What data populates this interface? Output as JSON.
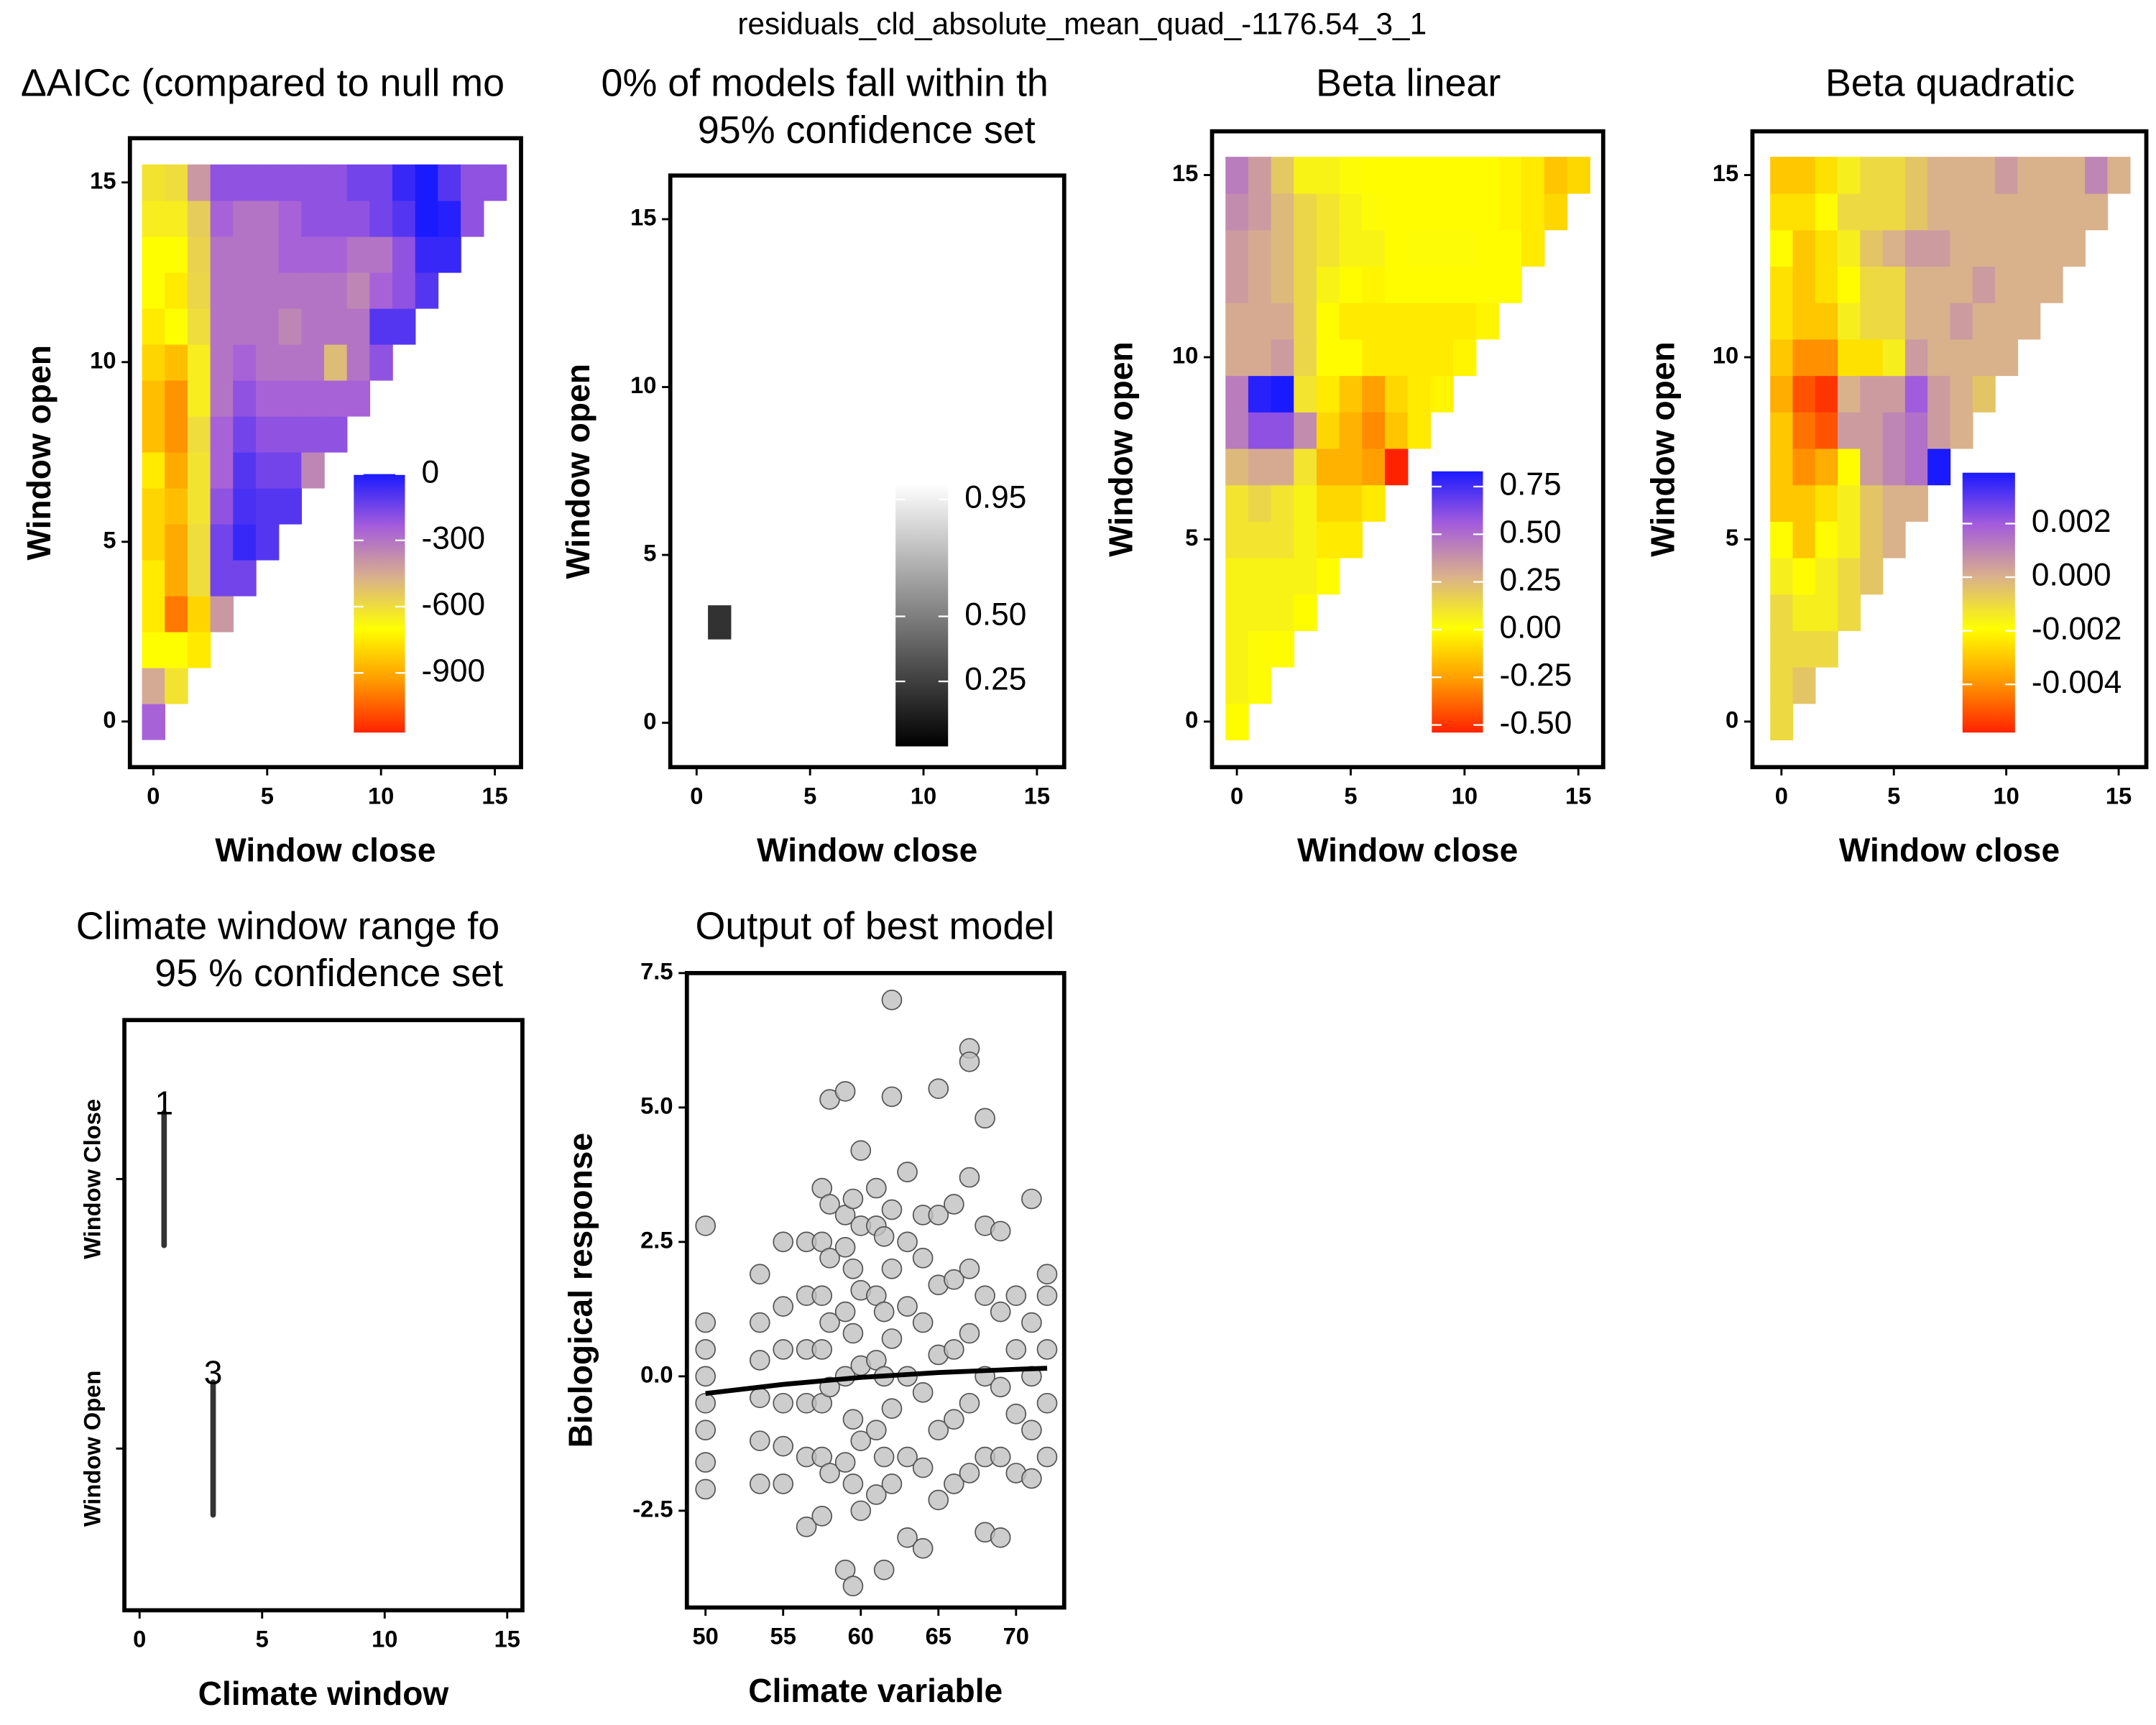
{
  "title": "residuals_cld_absolute_mean_quad_-1176.54_3_1",
  "chart_data": [
    {
      "type": "heatmap",
      "title": "ΔAICc (compared to null mo",
      "xlabel": "Window close",
      "ylabel": "Window open",
      "xlim": [
        -1.03,
        16.15
      ],
      "ylim": [
        -1.27,
        16.23
      ],
      "xticks": [
        0,
        5,
        10,
        15
      ],
      "yticks": [
        0,
        5,
        10,
        15
      ],
      "colorscale": [
        "#ff2200",
        "#ff9a00",
        "#ffff00",
        "#d9b08c",
        "#a45cdc",
        "#1a1aff"
      ],
      "zlim": [
        -1170,
        0
      ],
      "zticks": [
        0,
        -300,
        -600,
        -900
      ],
      "z": [
        [
          -250
        ],
        [
          -450,
          -620
        ],
        [
          -700,
          -700,
          -750
        ],
        [
          -750,
          -1000,
          -800,
          -400
        ],
        [
          -750,
          -900,
          -600,
          -150,
          -150
        ],
        [
          -800,
          -900,
          -600,
          -150,
          -50,
          -100
        ],
        [
          -800,
          -850,
          -620,
          -200,
          -80,
          -100,
          -100
        ],
        [
          -750,
          -900,
          -620,
          -250,
          -100,
          -150,
          -150,
          -350
        ],
        [
          -850,
          -950,
          -600,
          -250,
          -150,
          -200,
          -200,
          -200,
          -200
        ],
        [
          -850,
          -950,
          -650,
          -300,
          -200,
          -250,
          -250,
          -250,
          -250,
          -250
        ],
        [
          -800,
          -850,
          -650,
          -300,
          -250,
          -300,
          -300,
          -300,
          -500,
          -300,
          -200
        ],
        [
          -750,
          -700,
          -600,
          -300,
          -300,
          -300,
          -350,
          -300,
          -300,
          -300,
          -100,
          -100
        ],
        [
          -700,
          -750,
          -580,
          -300,
          -300,
          -300,
          -300,
          -300,
          -300,
          -350,
          -250,
          -200,
          -100
        ],
        [
          -700,
          -700,
          -570,
          -300,
          -300,
          -300,
          -250,
          -250,
          -250,
          -300,
          -300,
          -200,
          -50,
          -50
        ],
        [
          -650,
          -650,
          -550,
          -250,
          -300,
          -300,
          -250,
          -200,
          -200,
          -200,
          -150,
          -100,
          0,
          -20,
          -200
        ],
        [
          -620,
          -600,
          -400,
          -200,
          -200,
          -200,
          -200,
          -200,
          -200,
          -150,
          -150,
          -50,
          0,
          -100,
          -200,
          -200
        ]
      ]
    },
    {
      "type": "heatmap",
      "title": [
        "0% of models fall within th",
        "95% confidence set"
      ],
      "xlabel": "Window close",
      "ylabel": "Window open",
      "xlim": [
        -1.16,
        16.2
      ],
      "ylim": [
        -1.32,
        16.3
      ],
      "xticks": [
        0,
        5,
        10,
        15
      ],
      "yticks": [
        0,
        5,
        10,
        15
      ],
      "colorscale": [
        "#000000",
        "#ffffff"
      ],
      "zlim": [
        0,
        1.01
      ],
      "zticks": [
        0.95,
        {
          "value": 0.5,
          "label": "0.50"
        },
        0.25
      ],
      "z": [
        [
          null
        ],
        [
          null,
          null
        ],
        [
          null,
          null,
          null
        ],
        [
          null,
          0.2,
          null,
          null
        ]
      ]
    },
    {
      "type": "heatmap",
      "title": "Beta linear",
      "xlabel": "Window close",
      "ylabel": "Window open",
      "xlim": [
        -1.09,
        16.09
      ],
      "ylim": [
        -1.25,
        16.2
      ],
      "xticks": [
        0,
        5,
        10,
        15
      ],
      "yticks": [
        0,
        5,
        10,
        15
      ],
      "colorscale": [
        "#ff2200",
        "#ff9a00",
        "#ffff00",
        "#d9b08c",
        "#a45cdc",
        "#1a1aff"
      ],
      "zlim": [
        -0.54,
        0.83
      ],
      "zticks": [
        0.75,
        {
          "value": 0.5,
          "label": "0.50"
        },
        0.25,
        {
          "value": 0,
          "label": "0.00"
        },
        -0.25,
        {
          "value": -0.5,
          "label": "-0.50"
        }
      ],
      "z": [
        [
          0
        ],
        [
          0.05,
          0.02
        ],
        [
          0.05,
          0.02,
          0
        ],
        [
          0.05,
          0.05,
          0.05,
          0
        ],
        [
          0.05,
          0.05,
          0.05,
          0.05,
          0
        ],
        [
          0.1,
          0.1,
          0.1,
          0.05,
          -0.05,
          -0.05
        ],
        [
          0.1,
          0.15,
          0.1,
          0.05,
          -0.1,
          -0.1,
          -0.05
        ],
        [
          0.25,
          0.3,
          0.3,
          0.1,
          -0.2,
          -0.2,
          -0.25,
          -0.54
        ],
        [
          0.45,
          0.6,
          0.6,
          0.4,
          -0.1,
          -0.2,
          -0.3,
          -0.15,
          -0.05
        ],
        [
          0.45,
          0.8,
          0.83,
          0.1,
          -0.05,
          -0.15,
          -0.25,
          -0.1,
          -0.05,
          -0.02
        ],
        [
          0.3,
          0.3,
          0.35,
          0.15,
          0,
          0,
          -0.05,
          -0.05,
          -0.05,
          -0.05,
          -0.02
        ],
        [
          0.3,
          0.3,
          0.3,
          0.15,
          0,
          -0.05,
          -0.05,
          -0.05,
          -0.05,
          -0.05,
          -0.05,
          -0.02
        ],
        [
          0.35,
          0.3,
          0.25,
          0.15,
          0.05,
          0,
          -0.02,
          0,
          0,
          0,
          0,
          0,
          0
        ],
        [
          0.35,
          0.3,
          0.25,
          0.15,
          0.1,
          0.05,
          0.05,
          0,
          0.02,
          0.02,
          0.02,
          0,
          0,
          -0.05
        ],
        [
          0.4,
          0.35,
          0.25,
          0.15,
          0.1,
          0.05,
          0.02,
          0,
          0,
          0,
          0,
          0,
          -0.02,
          -0.05,
          -0.1
        ],
        [
          0.45,
          0.35,
          0.2,
          0.05,
          0.05,
          0.02,
          0,
          0,
          0,
          0,
          0,
          0,
          -0.02,
          -0.05,
          -0.15,
          -0.1
        ]
      ]
    },
    {
      "type": "heatmap",
      "title": "Beta quadratic",
      "xlabel": "Window close",
      "ylabel": "Window open",
      "xlim": [
        -1.29,
        16.23
      ],
      "ylim": [
        -1.25,
        16.2
      ],
      "xticks": [
        0,
        5,
        10,
        15
      ],
      "yticks": [
        0,
        5,
        10,
        15
      ],
      "colorscale": [
        "#ff2200",
        "#ff9a00",
        "#ffff00",
        "#d9b08c",
        "#a45cdc",
        "#1a1aff"
      ],
      "zlim": [
        -0.0058,
        0.0039
      ],
      "zticks": [
        0.002,
        {
          "value": 0,
          "label": "0.000"
        },
        -0.002,
        -0.004
      ],
      "z": [
        [
          -0.001
        ],
        [
          -0.001,
          -0.0005
        ],
        [
          -0.001,
          -0.001,
          -0.001
        ],
        [
          -0.001,
          -0.0015,
          -0.0015,
          -0.001
        ],
        [
          -0.0015,
          -0.002,
          -0.0015,
          -0.001,
          -0.0005
        ],
        [
          -0.002,
          -0.003,
          -0.002,
          -0.0015,
          -0.0005,
          0
        ],
        [
          -0.003,
          -0.003,
          -0.0025,
          -0.0015,
          -0.0005,
          0,
          0
        ],
        [
          -0.003,
          -0.004,
          -0.0035,
          -0.002,
          0.0005,
          0.001,
          0.0015,
          0.0039
        ],
        [
          -0.003,
          -0.0045,
          -0.005,
          0.0005,
          0.0005,
          0.001,
          0.0015,
          0.0005,
          0
        ],
        [
          -0.0035,
          -0.005,
          -0.0055,
          0,
          0.0005,
          0.0005,
          0.002,
          0.0005,
          0,
          -0.0005
        ],
        [
          -0.003,
          -0.004,
          -0.004,
          -0.0025,
          -0.0025,
          -0.0015,
          0.0005,
          0,
          0,
          0,
          0
        ],
        [
          -0.0025,
          -0.003,
          -0.003,
          -0.0015,
          -0.001,
          -0.001,
          0,
          0,
          0.0005,
          0,
          0,
          0
        ],
        [
          -0.0025,
          -0.003,
          -0.0025,
          -0.002,
          -0.001,
          -0.001,
          0,
          0,
          0,
          0.0005,
          0,
          0,
          0
        ],
        [
          -0.002,
          -0.003,
          -0.0025,
          -0.0015,
          -0.0005,
          0,
          0.0005,
          0.0005,
          0,
          0,
          0,
          0,
          0,
          0
        ],
        [
          -0.0025,
          -0.0025,
          -0.002,
          -0.001,
          -0.001,
          -0.001,
          -0.0005,
          0,
          0,
          0,
          0,
          0,
          0,
          0,
          0
        ],
        [
          -0.003,
          -0.003,
          -0.0025,
          -0.0015,
          -0.001,
          -0.001,
          -0.0005,
          0,
          0,
          0,
          0.0005,
          0,
          0,
          0,
          0.001,
          0
        ]
      ]
    },
    {
      "type": "range",
      "title": [
        "Climate window range fo",
        "95 % confidence set"
      ],
      "xlabel": "Climate window",
      "xlim": [
        -0.62,
        15.62
      ],
      "xticks": [
        0,
        5,
        10,
        15
      ],
      "categories": [
        "Window Close",
        "Window Open"
      ],
      "values": [
        1,
        3
      ],
      "color": "#333333"
    },
    {
      "type": "scatter",
      "title": "Output of best model",
      "xlabel": "Climate variable",
      "ylabel": "Biological response",
      "xlim": [
        48.8,
        73.1
      ],
      "ylim": [
        -4.3,
        7.5
      ],
      "xticks": [
        50,
        55,
        60,
        65,
        70
      ],
      "yticks": [
        7.5,
        {
          "value": 5,
          "label": "5.0"
        },
        2.5,
        {
          "value": 0,
          "label": "0.0"
        },
        -2.5
      ],
      "point_color": "#c0c0c0",
      "line_color": "#000000",
      "points": {
        "x": [
          50,
          50,
          50,
          50,
          50,
          50,
          50,
          50,
          53.5,
          53.5,
          53.5,
          53.5,
          53.5,
          53.5,
          55,
          55,
          55,
          55,
          55,
          55,
          56.5,
          56.5,
          56.5,
          56.5,
          56.5,
          56.5,
          57.5,
          57.5,
          57.5,
          57.5,
          57.5,
          57.5,
          57.5,
          58,
          58,
          58,
          58,
          58,
          58,
          59,
          59,
          59,
          59,
          59,
          59,
          59,
          59.5,
          59.5,
          59.5,
          59.5,
          59.5,
          59.5,
          60,
          60,
          60,
          60,
          60,
          60,
          61,
          61,
          61,
          61,
          61,
          61,
          61.5,
          61.5,
          61.5,
          61.5,
          61.5,
          62,
          62,
          62,
          62,
          62,
          62,
          62,
          63,
          63,
          63,
          63,
          63,
          63,
          64,
          64,
          64,
          64,
          64,
          64,
          65,
          65,
          65,
          65,
          65,
          65,
          66,
          66,
          66,
          66,
          66,
          67,
          67,
          67,
          67,
          67,
          67,
          67,
          68,
          68,
          68,
          68,
          68,
          68,
          69,
          69,
          69,
          69,
          69,
          70,
          70,
          70,
          70,
          71,
          71,
          71,
          71,
          71,
          72,
          72,
          72,
          72,
          72
        ],
        "values": [
          -2.1,
          -1.6,
          -1,
          -0.5,
          0,
          0.5,
          1,
          2.8,
          -2,
          -1.2,
          -0.4,
          0.3,
          1,
          1.9,
          -2,
          -1.3,
          -0.5,
          0.5,
          1.3,
          2.5,
          -2.8,
          -1.5,
          -0.5,
          0.5,
          1.5,
          2.5,
          -2.6,
          -1.5,
          -0.5,
          0.5,
          1.5,
          2.5,
          3.5,
          5.15,
          -1.8,
          -0.2,
          1,
          2.2,
          3.2,
          5.3,
          -3.6,
          -1.6,
          0,
          1.2,
          2.4,
          3,
          -3.9,
          -2,
          -0.8,
          0.8,
          2,
          3.3,
          4.2,
          -2.5,
          -1.2,
          0.2,
          1.6,
          2.8,
          -2.2,
          -1,
          0.3,
          1.5,
          2.8,
          3.5,
          -3.6,
          -1.5,
          0,
          1.2,
          2.6,
          7,
          5.2,
          -2,
          -0.6,
          0.7,
          2,
          3.1,
          -3,
          -1.5,
          0,
          1.3,
          2.5,
          3.8,
          -3.2,
          -1.7,
          -0.3,
          1,
          2.2,
          3,
          5.35,
          -2.3,
          -1,
          0.4,
          1.7,
          3,
          -2,
          -0.8,
          0.5,
          1.8,
          3.2,
          6.1,
          5.85,
          -1.8,
          -0.5,
          0.8,
          2,
          3.7,
          4.8,
          -2.9,
          -1.5,
          0,
          1.5,
          2.8,
          -3,
          -1.5,
          -0.2,
          1.2,
          2.7,
          -1.8,
          -0.7,
          0.5,
          1.5,
          -1.9,
          -1,
          0,
          1,
          3.3,
          -1.5,
          -0.5,
          0.5,
          1.5,
          1.9
        ]
      },
      "fit": {
        "x": [
          50,
          55,
          60,
          65,
          70,
          72
        ],
        "values": [
          -0.32,
          -0.15,
          -0.02,
          0.07,
          0.13,
          0.15
        ]
      }
    }
  ]
}
